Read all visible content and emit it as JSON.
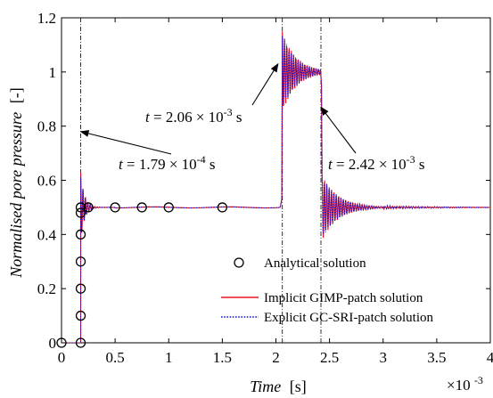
{
  "chart_data": {
    "type": "line",
    "title": "",
    "xlabel": "Time",
    "xlabel_unit": "[s]",
    "x_multiplier": "×10",
    "x_multiplier_exp": "-3",
    "ylabel": "Normalised pore pressure",
    "ylabel_unit": "[-]",
    "xlim": [
      0,
      4
    ],
    "ylim": [
      0,
      1.2
    ],
    "xticks": [
      "0",
      "0.5",
      "1",
      "1.5",
      "2",
      "2.5",
      "3",
      "3.5",
      "4"
    ],
    "yticks": [
      "0",
      "0.2",
      "0.4",
      "0.6",
      "0.8",
      "1",
      "1.2"
    ],
    "grid": false,
    "legend_position": "bottom-right",
    "vertical_lines": [
      0.179,
      2.06,
      2.42
    ],
    "annotations": [
      {
        "prefix": "t",
        "text": " = 1.79 × 10",
        "exp": "-4",
        "suffix": " s",
        "target_x": 0.179,
        "target_y": 0.78
      },
      {
        "prefix": "t",
        "text": " = 2.06 × 10",
        "exp": "-3",
        "suffix": " s",
        "target_x": 2.02,
        "target_y": 1.03
      },
      {
        "prefix": "t",
        "text": " = 2.42 × 10",
        "exp": "-3",
        "suffix": " s",
        "target_x": 2.42,
        "target_y": 0.87
      }
    ],
    "series": [
      {
        "name": "Analytical solution",
        "style": "markers",
        "color": "#000000",
        "x": [
          0.0,
          0.179,
          0.179,
          0.179,
          0.179,
          0.179,
          0.179,
          0.179,
          0.25,
          0.5,
          0.75,
          1.0,
          1.5
        ],
        "y": [
          0.0,
          0.0,
          0.1,
          0.2,
          0.3,
          0.4,
          0.48,
          0.5,
          0.5,
          0.5,
          0.5,
          0.5,
          0.5
        ]
      },
      {
        "name": "Implicit GIMP-patch solution",
        "style": "solid",
        "color": "#e8141c",
        "x": [],
        "y": []
      },
      {
        "name": "Explicit GC-SRI-patch solution",
        "style": "dotted",
        "color": "#1414d2",
        "x": [],
        "y": []
      }
    ]
  }
}
